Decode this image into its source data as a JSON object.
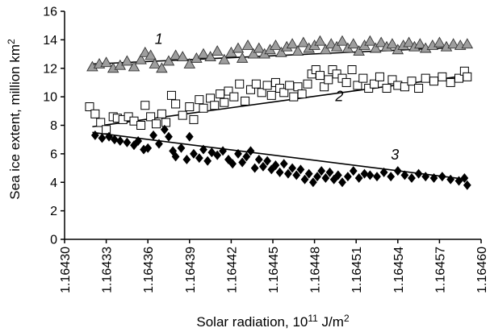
{
  "chart_data": {
    "type": "scatter",
    "xlabel": "Solar radiation, 10",
    "xlabel_sup": "11",
    "xlabel_unit": " J/m",
    "xlabel_unit_sup": "2",
    "ylabel": "Sea ice extent, million km",
    "ylabel_sup": "2",
    "xlim": [
      1.1643,
      1.1646
    ],
    "ylim": [
      0,
      16
    ],
    "x_ticks": [
      1.1643,
      1.16433,
      1.16436,
      1.16439,
      1.16442,
      1.16445,
      1.16448,
      1.16451,
      1.16454,
      1.16457,
      1.1646
    ],
    "x_tick_labels": [
      "1.16430",
      "1.16433",
      "1.16436",
      "1.16439",
      "1.16442",
      "1.16445",
      "1.16448",
      "1.16451",
      "1.16454",
      "1.16457",
      "1.16460"
    ],
    "y_ticks": [
      0,
      2,
      4,
      6,
      8,
      10,
      12,
      14,
      16
    ],
    "y_tick_labels": [
      "0",
      "2",
      "4",
      "6",
      "8",
      "10",
      "12",
      "14",
      "16"
    ],
    "grid": false,
    "legend": "none",
    "series": [
      {
        "label": "1",
        "marker": "triangle",
        "fill_color": "#9e9e9e",
        "trend": [
          [
            1.16432,
            12.3
          ],
          [
            1.16459,
            13.5
          ]
        ],
        "points": [
          [
            1.16432,
            12.1
          ],
          [
            1.164325,
            12.3
          ],
          [
            1.16433,
            12.4
          ],
          [
            1.164335,
            12.0
          ],
          [
            1.16434,
            12.2
          ],
          [
            1.164345,
            12.5
          ],
          [
            1.16435,
            12.1
          ],
          [
            1.164355,
            12.6
          ],
          [
            1.164358,
            13.1
          ],
          [
            1.164362,
            12.9
          ],
          [
            1.164365,
            12.3
          ],
          [
            1.16437,
            12.0
          ],
          [
            1.164375,
            12.5
          ],
          [
            1.16438,
            12.9
          ],
          [
            1.164385,
            12.8
          ],
          [
            1.16439,
            12.3
          ],
          [
            1.164395,
            12.7
          ],
          [
            1.1644,
            13.0
          ],
          [
            1.164405,
            12.8
          ],
          [
            1.16441,
            13.2
          ],
          [
            1.164415,
            12.6
          ],
          [
            1.16442,
            13.1
          ],
          [
            1.164425,
            13.4
          ],
          [
            1.164428,
            12.7
          ],
          [
            1.164432,
            13.6
          ],
          [
            1.164436,
            13.0
          ],
          [
            1.16444,
            13.4
          ],
          [
            1.164444,
            13.0
          ],
          [
            1.164448,
            13.3
          ],
          [
            1.164452,
            13.6
          ],
          [
            1.164456,
            13.1
          ],
          [
            1.16446,
            13.5
          ],
          [
            1.164464,
            13.7
          ],
          [
            1.164468,
            13.2
          ],
          [
            1.164472,
            13.8
          ],
          [
            1.164476,
            13.4
          ],
          [
            1.16448,
            13.6
          ],
          [
            1.164484,
            13.9
          ],
          [
            1.164488,
            13.3
          ],
          [
            1.164492,
            13.7
          ],
          [
            1.164496,
            13.5
          ],
          [
            1.1645,
            13.9
          ],
          [
            1.164504,
            13.4
          ],
          [
            1.164508,
            13.7
          ],
          [
            1.164512,
            13.2
          ],
          [
            1.164516,
            13.6
          ],
          [
            1.16452,
            13.9
          ],
          [
            1.164524,
            13.4
          ],
          [
            1.164528,
            13.8
          ],
          [
            1.164532,
            13.5
          ],
          [
            1.164536,
            13.7
          ],
          [
            1.16454,
            13.3
          ],
          [
            1.164544,
            13.6
          ],
          [
            1.164548,
            13.8
          ],
          [
            1.164552,
            13.5
          ],
          [
            1.164556,
            13.7
          ],
          [
            1.16456,
            13.4
          ],
          [
            1.164565,
            13.6
          ],
          [
            1.16457,
            13.8
          ],
          [
            1.164575,
            13.5
          ],
          [
            1.16458,
            13.7
          ],
          [
            1.164585,
            13.6
          ],
          [
            1.16459,
            13.7
          ]
        ]
      },
      {
        "label": "2",
        "marker": "square",
        "fill_color": "#ffffff",
        "trend": [
          [
            1.16432,
            7.9
          ],
          [
            1.16459,
            11.5
          ]
        ],
        "points": [
          [
            1.164318,
            9.3
          ],
          [
            1.164322,
            8.8
          ],
          [
            1.164326,
            8.2
          ],
          [
            1.16433,
            7.7
          ],
          [
            1.164335,
            8.6
          ],
          [
            1.164338,
            8.5
          ],
          [
            1.164342,
            8.4
          ],
          [
            1.164346,
            8.6
          ],
          [
            1.16435,
            8.3
          ],
          [
            1.164355,
            8.0
          ],
          [
            1.164358,
            9.4
          ],
          [
            1.164362,
            8.6
          ],
          [
            1.164366,
            8.1
          ],
          [
            1.16437,
            8.8
          ],
          [
            1.164373,
            8.2
          ],
          [
            1.164377,
            10.1
          ],
          [
            1.16438,
            9.5
          ],
          [
            1.164385,
            8.7
          ],
          [
            1.16439,
            9.3
          ],
          [
            1.164393,
            8.4
          ],
          [
            1.164397,
            9.8
          ],
          [
            1.1644,
            9.2
          ],
          [
            1.164405,
            9.9
          ],
          [
            1.164408,
            9.4
          ],
          [
            1.164412,
            10.2
          ],
          [
            1.164415,
            9.6
          ],
          [
            1.164418,
            10.4
          ],
          [
            1.164422,
            10.0
          ],
          [
            1.164426,
            10.9
          ],
          [
            1.16443,
            9.7
          ],
          [
            1.164434,
            10.5
          ],
          [
            1.164438,
            10.9
          ],
          [
            1.164442,
            10.3
          ],
          [
            1.164446,
            10.8
          ],
          [
            1.164449,
            10.1
          ],
          [
            1.164452,
            11.0
          ],
          [
            1.164455,
            10.6
          ],
          [
            1.164458,
            10.3
          ],
          [
            1.164462,
            10.8
          ],
          [
            1.164465,
            10.0
          ],
          [
            1.164468,
            10.7
          ],
          [
            1.164471,
            10.2
          ],
          [
            1.164475,
            10.9
          ],
          [
            1.164478,
            11.6
          ],
          [
            1.164481,
            11.9
          ],
          [
            1.164484,
            11.5
          ],
          [
            1.164487,
            10.7
          ],
          [
            1.16449,
            11.2
          ],
          [
            1.164493,
            11.9
          ],
          [
            1.164496,
            11.6
          ],
          [
            1.1645,
            11.3
          ],
          [
            1.164503,
            11.0
          ],
          [
            1.164507,
            11.9
          ],
          [
            1.164511,
            10.8
          ],
          [
            1.164515,
            11.3
          ],
          [
            1.164519,
            10.6
          ],
          [
            1.164523,
            10.9
          ],
          [
            1.164527,
            11.4
          ],
          [
            1.164532,
            10.6
          ],
          [
            1.164536,
            11.2
          ],
          [
            1.16454,
            10.8
          ],
          [
            1.164545,
            10.7
          ],
          [
            1.16455,
            11.1
          ],
          [
            1.164555,
            10.6
          ],
          [
            1.16456,
            11.3
          ],
          [
            1.164566,
            11.1
          ],
          [
            1.164572,
            11.4
          ],
          [
            1.164578,
            11.0
          ],
          [
            1.164584,
            11.3
          ],
          [
            1.164588,
            11.8
          ],
          [
            1.16459,
            11.4
          ]
        ]
      },
      {
        "label": "3",
        "marker": "diamond",
        "fill_color": "#000000",
        "trend": [
          [
            1.16432,
            7.5
          ],
          [
            1.16459,
            4.2
          ]
        ],
        "points": [
          [
            1.164322,
            7.3
          ],
          [
            1.164327,
            7.1
          ],
          [
            1.164332,
            7.2
          ],
          [
            1.164336,
            7.0
          ],
          [
            1.16434,
            6.9
          ],
          [
            1.164345,
            6.8
          ],
          [
            1.16435,
            6.6
          ],
          [
            1.164353,
            6.9
          ],
          [
            1.164357,
            6.3
          ],
          [
            1.16436,
            6.4
          ],
          [
            1.164364,
            7.3
          ],
          [
            1.164368,
            6.7
          ],
          [
            1.164372,
            7.7
          ],
          [
            1.164375,
            7.2
          ],
          [
            1.164378,
            6.2
          ],
          [
            1.16438,
            5.8
          ],
          [
            1.164384,
            6.4
          ],
          [
            1.164388,
            5.6
          ],
          [
            1.16439,
            7.2
          ],
          [
            1.164393,
            6.0
          ],
          [
            1.164397,
            5.7
          ],
          [
            1.1644,
            6.3
          ],
          [
            1.164403,
            5.5
          ],
          [
            1.164406,
            6.1
          ],
          [
            1.16441,
            5.9
          ],
          [
            1.164414,
            6.2
          ],
          [
            1.164418,
            5.6
          ],
          [
            1.164421,
            5.3
          ],
          [
            1.164425,
            6.0
          ],
          [
            1.164428,
            5.4
          ],
          [
            1.164431,
            5.8
          ],
          [
            1.164434,
            6.2
          ],
          [
            1.164437,
            5.0
          ],
          [
            1.16444,
            5.6
          ],
          [
            1.164443,
            5.1
          ],
          [
            1.164446,
            5.5
          ],
          [
            1.164449,
            4.9
          ],
          [
            1.164452,
            5.2
          ],
          [
            1.164455,
            4.7
          ],
          [
            1.164458,
            5.3
          ],
          [
            1.164461,
            4.6
          ],
          [
            1.164464,
            5.0
          ],
          [
            1.164467,
            4.5
          ],
          [
            1.16447,
            4.9
          ],
          [
            1.164473,
            4.2
          ],
          [
            1.164476,
            4.6
          ],
          [
            1.164479,
            4.0
          ],
          [
            1.164482,
            4.4
          ],
          [
            1.164485,
            4.8
          ],
          [
            1.164488,
            4.3
          ],
          [
            1.164491,
            4.7
          ],
          [
            1.164494,
            4.2
          ],
          [
            1.164497,
            4.5
          ],
          [
            1.1645,
            4.0
          ],
          [
            1.164504,
            4.4
          ],
          [
            1.164508,
            4.8
          ],
          [
            1.164512,
            4.3
          ],
          [
            1.164516,
            4.6
          ],
          [
            1.16452,
            4.5
          ],
          [
            1.164525,
            4.4
          ],
          [
            1.16453,
            4.7
          ],
          [
            1.164535,
            4.4
          ],
          [
            1.16454,
            4.8
          ],
          [
            1.164545,
            4.5
          ],
          [
            1.16455,
            4.3
          ],
          [
            1.164555,
            4.6
          ],
          [
            1.16456,
            4.4
          ],
          [
            1.164566,
            4.3
          ],
          [
            1.164572,
            4.4
          ],
          [
            1.164578,
            4.2
          ],
          [
            1.164584,
            4.1
          ],
          [
            1.164588,
            4.3
          ],
          [
            1.16459,
            3.8
          ]
        ]
      }
    ]
  }
}
